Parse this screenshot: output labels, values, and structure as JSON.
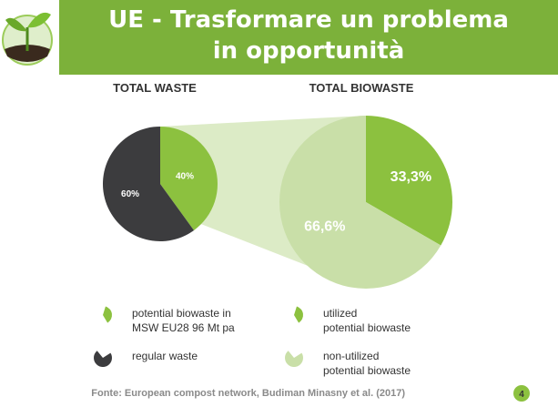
{
  "title_lines": [
    "UE - Trasformare un problema",
    "in opportunità"
  ],
  "chart_data": [
    {
      "type": "pie",
      "title": "TOTAL WASTE",
      "categories": [
        "potential biowaste in\nMSW EU28 96 Mt pa",
        "regular waste"
      ],
      "values": [
        40,
        60
      ],
      "value_labels": [
        "40%",
        "60%"
      ],
      "colors": [
        "#8cc13f",
        "#3c3c3e"
      ]
    },
    {
      "type": "pie",
      "title": "TOTAL BIOWASTE",
      "categories": [
        "utilized\npotential biowaste",
        "non-utilized\npotential biowaste"
      ],
      "values": [
        33.3,
        66.6
      ],
      "value_labels": [
        "33,3%",
        "66,6%"
      ],
      "colors": [
        "#8cc13f",
        "#c9dfa8"
      ]
    }
  ],
  "source": "Fonte: European compost network, Budiman Minasny et al. (2017)",
  "page_number": 4
}
